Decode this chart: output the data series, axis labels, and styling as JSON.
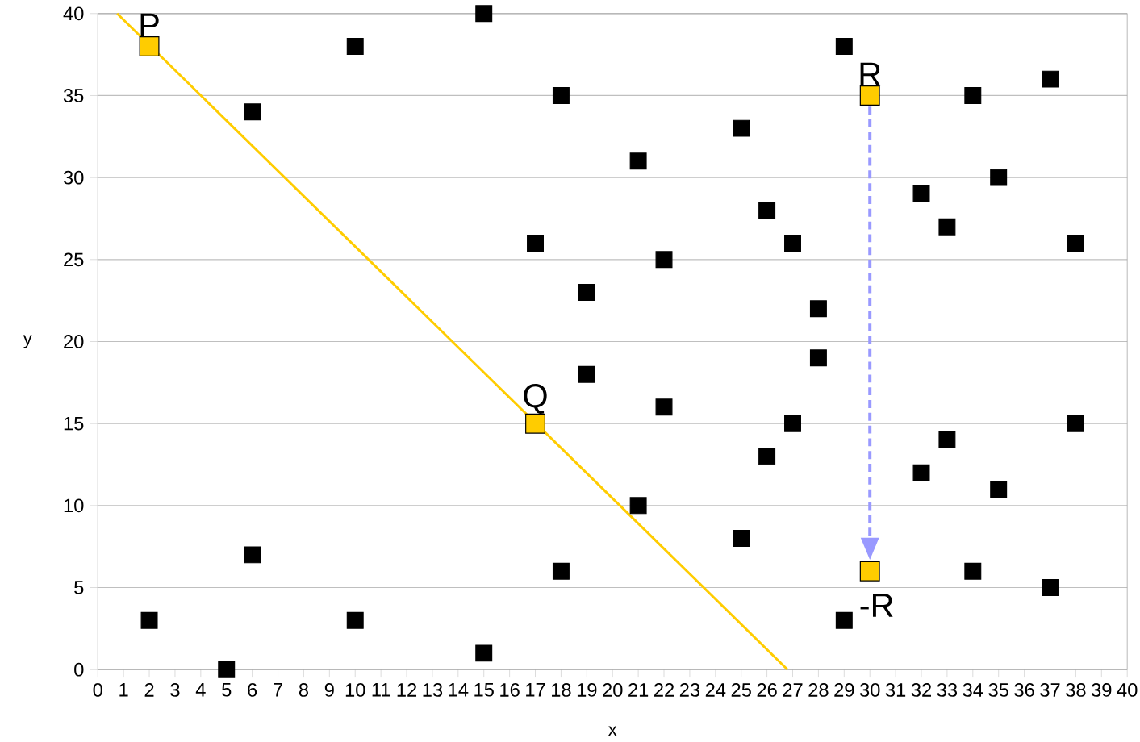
{
  "chart_data": {
    "type": "scatter",
    "xlabel": "x",
    "ylabel": "y",
    "xlim": [
      0,
      40
    ],
    "ylim": [
      0,
      40
    ],
    "xticks": [
      0,
      1,
      2,
      3,
      4,
      5,
      6,
      7,
      8,
      9,
      10,
      11,
      12,
      13,
      14,
      15,
      16,
      17,
      18,
      19,
      20,
      21,
      22,
      23,
      24,
      25,
      26,
      27,
      28,
      29,
      30,
      31,
      32,
      33,
      34,
      35,
      36,
      37,
      38,
      39,
      40
    ],
    "yticks": [
      0,
      5,
      10,
      15,
      20,
      25,
      30,
      35,
      40
    ],
    "grid": "y",
    "series": [
      {
        "marker": "square",
        "color": "#000000",
        "x": [
          2,
          5,
          6,
          6,
          10,
          10,
          15,
          15,
          17,
          18,
          18,
          19,
          19,
          21,
          21,
          22,
          22,
          25,
          25,
          26,
          26,
          27,
          27,
          28,
          28,
          29,
          29,
          32,
          32,
          33,
          33,
          34,
          34,
          35,
          35,
          37,
          37,
          38,
          38
        ],
        "values": [
          3,
          0,
          34,
          7,
          38,
          3,
          40,
          1,
          26,
          35,
          6,
          23,
          18,
          31,
          10,
          25,
          16,
          33,
          8,
          28,
          13,
          26,
          15,
          22,
          19,
          38,
          3,
          29,
          12,
          27,
          14,
          35,
          6,
          30,
          11,
          36,
          5,
          26,
          15
        ]
      },
      {
        "type": "line",
        "marker": "none",
        "line_style": "solid",
        "color": "#ffcc00",
        "x": [
          0.75,
          26.8
        ],
        "values": [
          40,
          0
        ]
      },
      {
        "marker": "square",
        "color": "#ffcc00",
        "x": [
          2,
          17,
          30,
          30
        ],
        "values": [
          38,
          15,
          35,
          6
        ]
      }
    ],
    "annotations": [
      {
        "text": "P",
        "x": 2,
        "y": 38
      },
      {
        "text": "Q",
        "x": 17,
        "y": 15
      },
      {
        "text": "R",
        "x": 30,
        "y": 35
      },
      {
        "text": "-R",
        "x": 30,
        "y": 6
      }
    ]
  }
}
